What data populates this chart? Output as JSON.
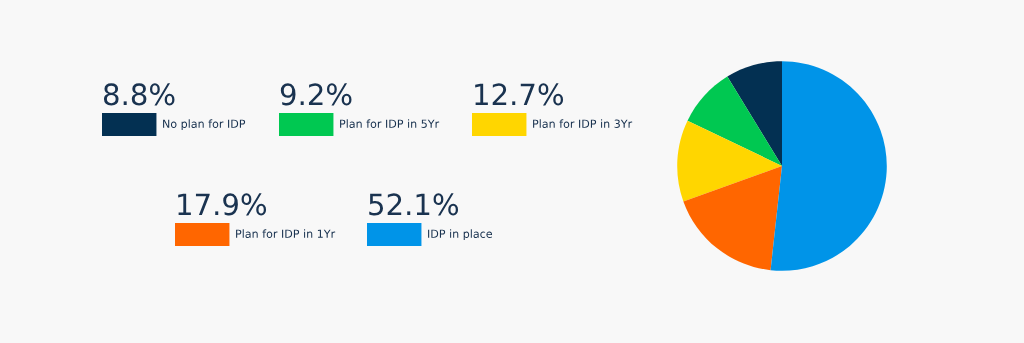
{
  "chart_data": {
    "type": "pie",
    "categories": [
      "No plan for IDP",
      "Plan for IDP in 5Yr",
      "Plan for IDP in 3Yr",
      "Plan for IDP in 1Yr",
      "IDP in place"
    ],
    "values": [
      8.8,
      9.2,
      12.7,
      17.9,
      52.1
    ],
    "colors": [
      "#033052",
      "#00c851",
      "#ffd600",
      "#ff6600",
      "#0094e8"
    ],
    "value_labels": [
      "8.8%",
      "9.2%",
      "12.7%",
      "17.9%",
      "52.1%"
    ],
    "legend": "left"
  }
}
